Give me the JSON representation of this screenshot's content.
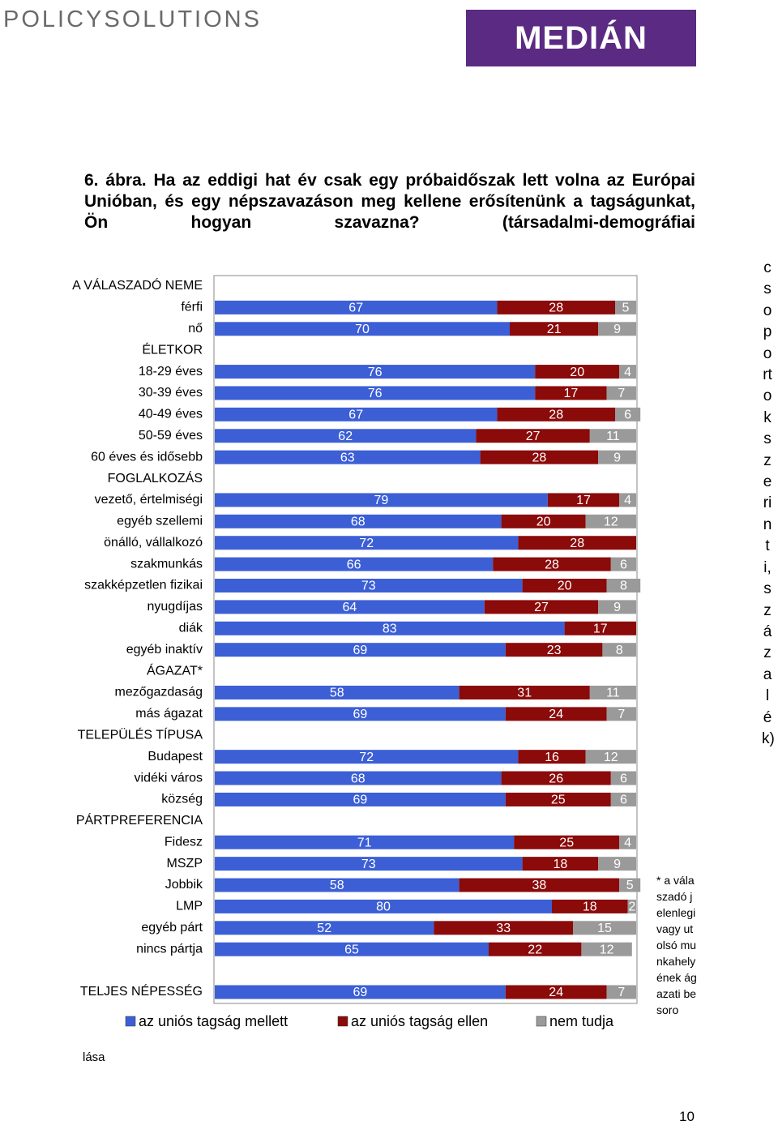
{
  "header": {
    "left_logo": "POLICYSOLUTIONS",
    "right_logo": "MEDIÁN"
  },
  "title": "6. ábra. Ha az eddigi hat év csak egy próbaidőszak lett volna az Európai Unióban, és egy népszavazáson meg kellene erősítenünk a tagságunkat, Ön hogyan szavazna? (társadalmi-demográfiai",
  "side_text": "csoportok szerinti, százalék)",
  "footnote": "* a válaszadó jelenlegi vagy utolsó munkahelyének ágazati besoro",
  "footnote_end": "lása",
  "page_number": "10",
  "chart_data": {
    "type": "bar",
    "orientation": "horizontal",
    "stacked": true,
    "categories": [
      "A VÁLASZADÓ NEME",
      "férfi",
      "nő",
      "ÉLETKOR",
      "18-29 éves",
      "30-39 éves",
      "40-49 éves",
      "50-59 éves",
      "60 éves és idősebb",
      "FOGLALKOZÁS",
      "vezető, értelmiségi",
      "egyéb szellemi",
      "önálló, vállalkozó",
      "szakmunkás",
      "szakképzetlen fizikai",
      "nyugdíjas",
      "diák",
      "egyéb inaktív",
      "ÁGAZAT*",
      "mezőgazdaság",
      "más ágazat",
      "TELEPÜLÉS TÍPUSA",
      "Budapest",
      "vidéki város",
      "község",
      "PÁRTPREFERENCIA",
      "Fidesz",
      "MSZP",
      "Jobbik",
      "LMP",
      "egyéb párt",
      "nincs pártja",
      null,
      "TELJES NÉPESSÉG"
    ],
    "series": [
      {
        "name": "az uniós tagság mellett",
        "color": "#3c5fd6",
        "values": [
          null,
          67,
          70,
          null,
          76,
          76,
          67,
          62,
          63,
          null,
          79,
          68,
          72,
          66,
          73,
          64,
          83,
          69,
          null,
          58,
          69,
          null,
          72,
          68,
          69,
          null,
          71,
          73,
          58,
          80,
          52,
          65,
          null,
          69
        ]
      },
      {
        "name": "az uniós tagság ellen",
        "color": "#8b0a0a",
        "values": [
          null,
          28,
          21,
          null,
          20,
          17,
          28,
          27,
          28,
          null,
          17,
          20,
          28,
          28,
          20,
          27,
          17,
          23,
          null,
          31,
          24,
          null,
          16,
          26,
          25,
          null,
          25,
          18,
          38,
          18,
          33,
          22,
          null,
          24
        ]
      },
      {
        "name": "nem tudja",
        "color": "#9a9a9a",
        "values": [
          null,
          5,
          9,
          null,
          4,
          7,
          6,
          11,
          9,
          null,
          4,
          12,
          null,
          6,
          8,
          9,
          null,
          8,
          null,
          11,
          7,
          null,
          12,
          6,
          6,
          null,
          4,
          9,
          5,
          2,
          15,
          12,
          null,
          7
        ]
      }
    ],
    "xlim": [
      0,
      100
    ]
  }
}
